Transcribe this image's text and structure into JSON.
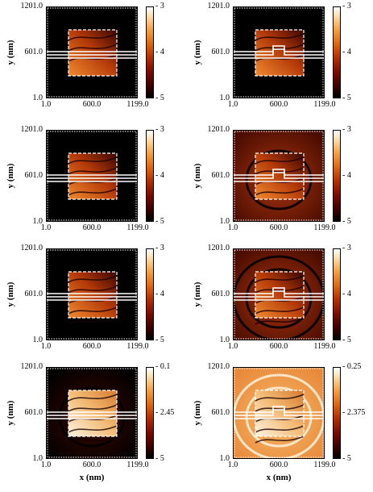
{
  "figure": {
    "x_axis": {
      "label": "x (nm)",
      "ticks": [
        "1.0",
        "600.0",
        "1199.0"
      ]
    },
    "y_axis": {
      "label": "y (nm)",
      "ticks": [
        "1201.0",
        "601.0",
        "1.0"
      ]
    }
  },
  "panels": [
    {
      "id": "r1c1",
      "colorbar_ticks": [
        "- 3",
        "- 4",
        "- 5"
      ],
      "notch": false,
      "stripes": 1,
      "rings": 0,
      "outer_glow": 0.0
    },
    {
      "id": "r1c2",
      "colorbar_ticks": [
        "- 3",
        "- 4",
        "- 5"
      ],
      "notch": true,
      "stripes": 1,
      "rings": 0,
      "outer_glow": 0.0
    },
    {
      "id": "r2c1",
      "colorbar_ticks": [
        "- 3",
        "- 4",
        "- 5"
      ],
      "notch": false,
      "stripes": 2,
      "rings": 0,
      "outer_glow": 0.0
    },
    {
      "id": "r2c2",
      "colorbar_ticks": [
        "- 3",
        "- 4",
        "- 5"
      ],
      "notch": true,
      "stripes": 2,
      "rings": 1,
      "outer_glow": 0.35
    },
    {
      "id": "r3c1",
      "colorbar_ticks": [
        "- 3",
        "- 4",
        "- 5"
      ],
      "notch": false,
      "stripes": 3,
      "rings": 0,
      "outer_glow": 0.0
    },
    {
      "id": "r3c2",
      "colorbar_ticks": [
        "- 3",
        "- 4",
        "- 5"
      ],
      "notch": true,
      "stripes": 3,
      "rings": 2,
      "outer_glow": 0.5
    },
    {
      "id": "r4c1",
      "colorbar_ticks": [
        "- 0.1",
        "- 2.45",
        "- 5"
      ],
      "notch": false,
      "stripes": 3,
      "rings": 1,
      "outer_glow": 0.2
    },
    {
      "id": "r4c2",
      "colorbar_ticks": [
        "- 0.25",
        "- 2.375",
        "- 5"
      ],
      "notch": true,
      "stripes": 3,
      "rings": 2,
      "outer_glow": 0.85
    }
  ],
  "chart_data": {
    "type": "heatmap",
    "xlabel": "x (nm)",
    "ylabel": "y (nm)",
    "xlim": [
      1.0,
      1199.0
    ],
    "ylim": [
      1.0,
      1201.0
    ],
    "x_ticks": [
      1.0,
      600.0,
      1199.0
    ],
    "y_ticks": [
      1.0,
      601.0,
      1201.0
    ],
    "colorbar_ranges": [
      [
        -5,
        -3
      ],
      [
        -5,
        -3
      ],
      [
        -5,
        -3
      ],
      [
        -5,
        -3
      ],
      [
        -5,
        -3
      ],
      [
        -5,
        -3
      ],
      [
        -5,
        0.1
      ],
      [
        -5,
        0.25
      ]
    ],
    "colorbar_middle_ticks": [
      -4,
      -4,
      -4,
      -4,
      -4,
      -4,
      -2.45,
      -2.375
    ],
    "panel_count": 8,
    "layout": "4 rows x 2 columns"
  }
}
